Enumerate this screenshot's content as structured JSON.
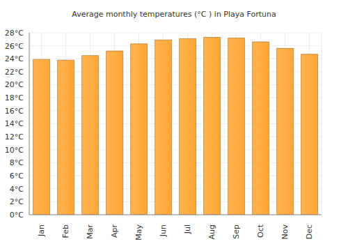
{
  "chart_data": {
    "type": "bar",
    "title": "Average monthly temperatures (°C ) in Playa Fortuna",
    "categories": [
      "Jan",
      "Feb",
      "Mar",
      "Apr",
      "May",
      "Jun",
      "Jul",
      "Aug",
      "Sep",
      "Oct",
      "Nov",
      "Dec"
    ],
    "values": [
      23.9,
      23.8,
      24.5,
      25.2,
      26.3,
      26.9,
      27.1,
      27.3,
      27.2,
      26.6,
      25.6,
      24.7
    ],
    "color": "#ffa633",
    "ylim": [
      0,
      28
    ],
    "yticks": [
      {
        "value": 0,
        "label": "0°C"
      },
      {
        "value": 2,
        "label": "2°C"
      },
      {
        "value": 4,
        "label": "4°C"
      },
      {
        "value": 6,
        "label": "6°C"
      },
      {
        "value": 8,
        "label": "8°C"
      },
      {
        "value": 10,
        "label": "10°C"
      },
      {
        "value": 12,
        "label": "12°C"
      },
      {
        "value": 14,
        "label": "14°C"
      },
      {
        "value": 16,
        "label": "16°C"
      },
      {
        "value": 18,
        "label": "18°C"
      },
      {
        "value": 20,
        "label": "20°C"
      },
      {
        "value": 22,
        "label": "22°C"
      },
      {
        "value": 24,
        "label": "24°C"
      },
      {
        "value": 26,
        "label": "26°C"
      },
      {
        "value": 28,
        "label": "28°C"
      }
    ],
    "grid": true
  }
}
